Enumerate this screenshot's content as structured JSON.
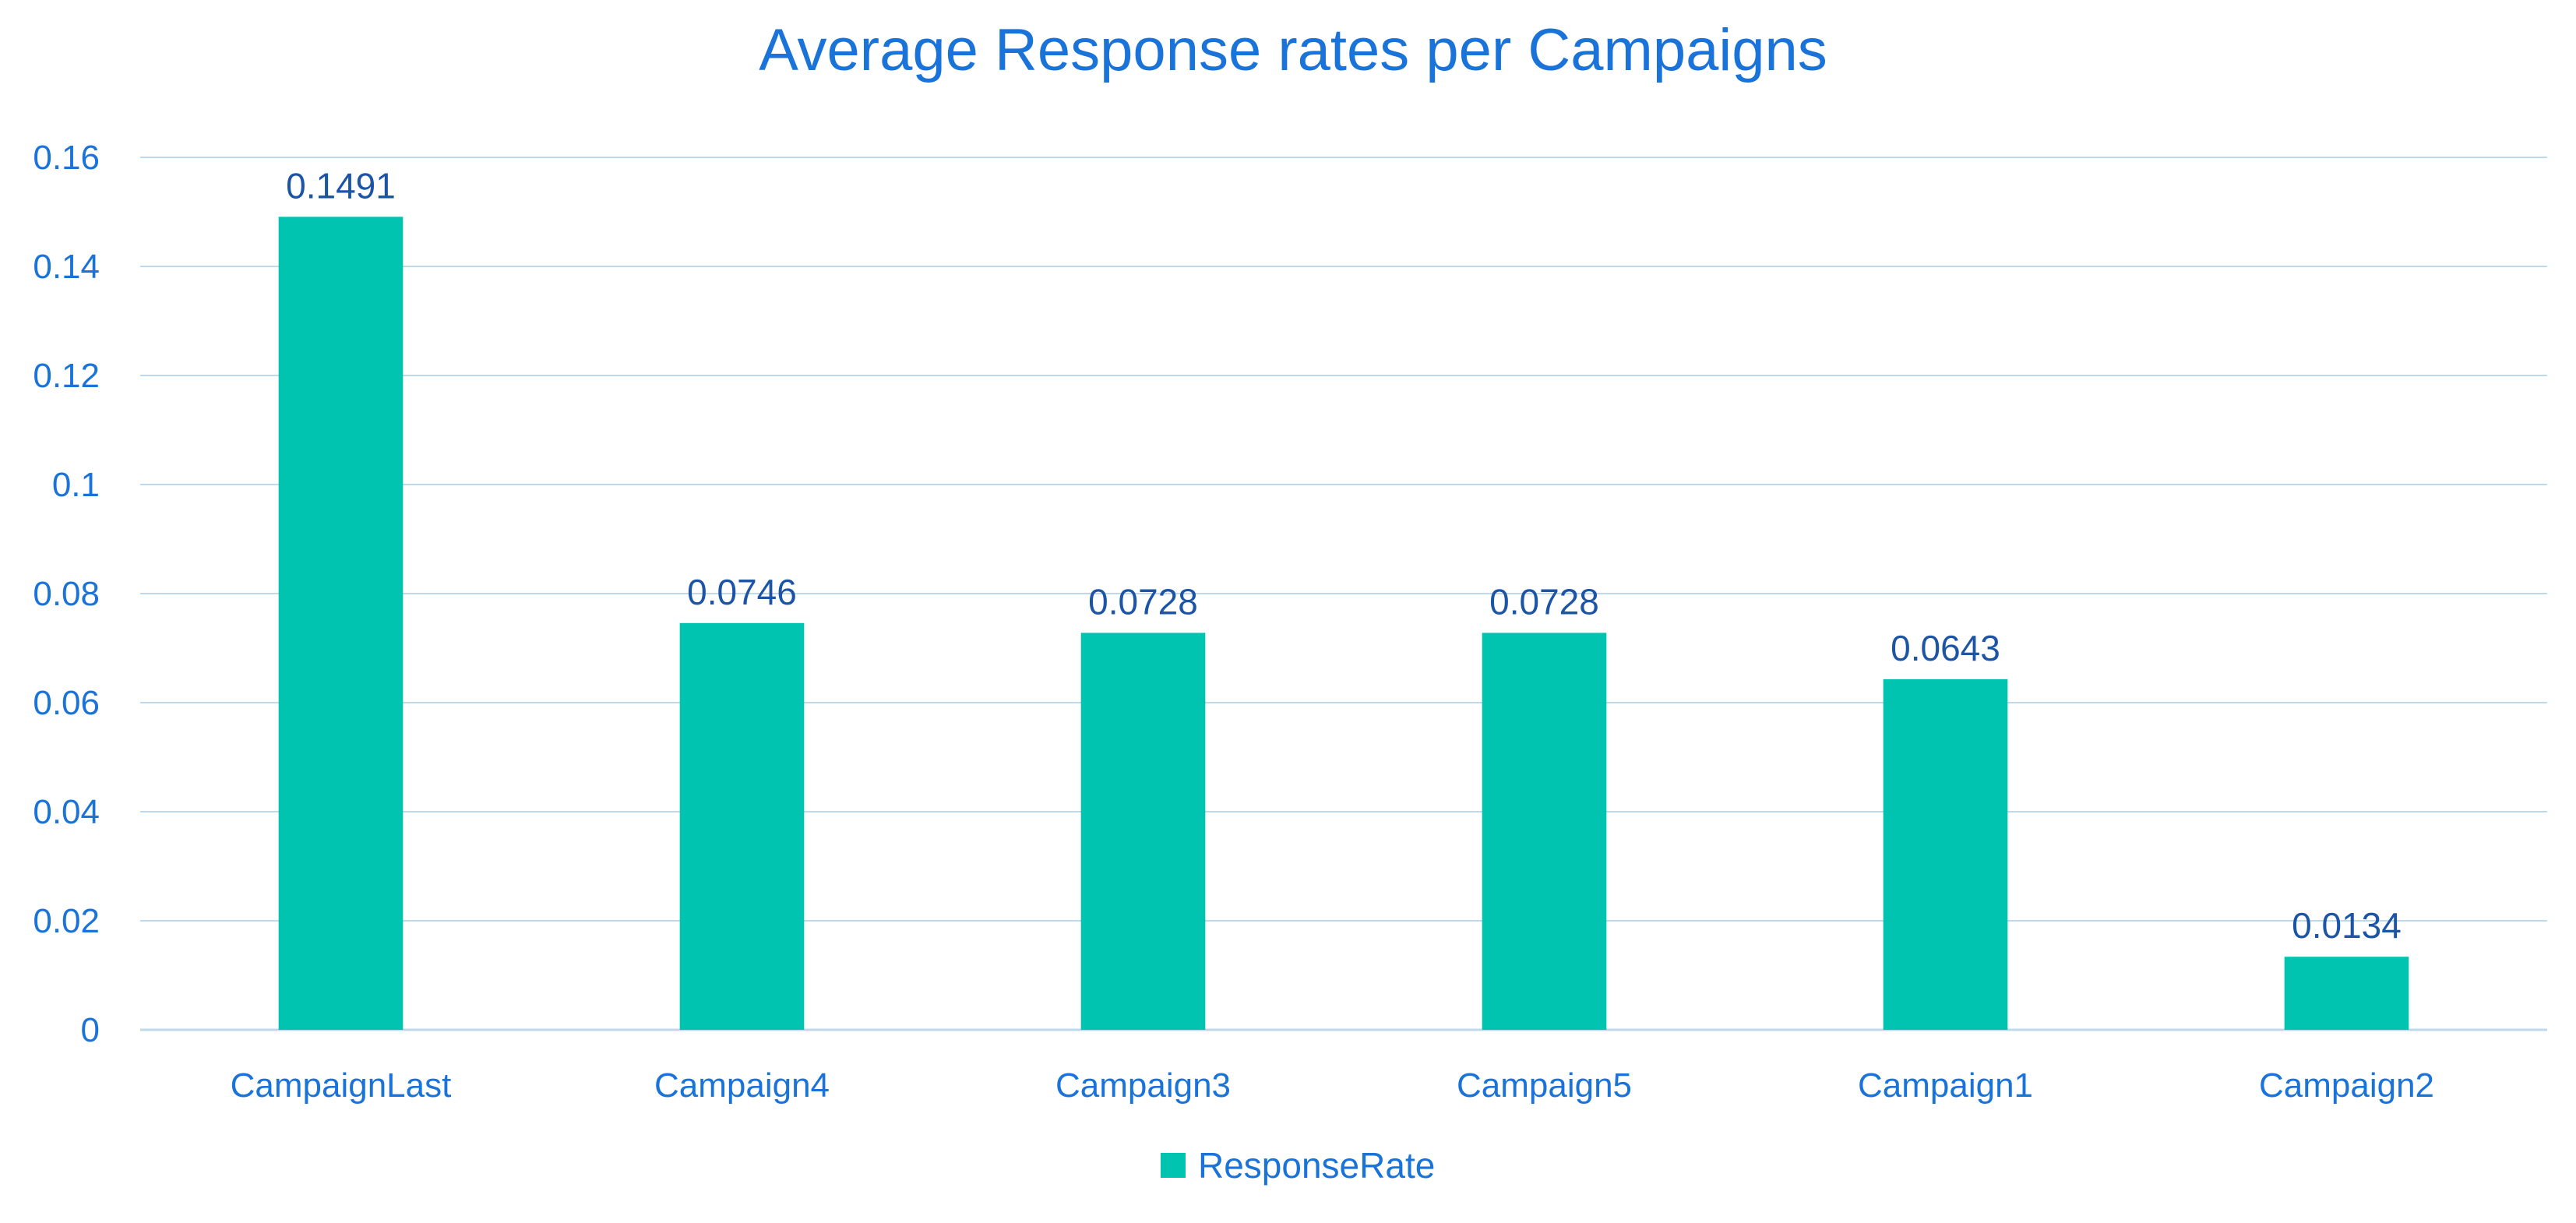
{
  "chart_data": {
    "type": "bar",
    "title": "Average Response rates per Campaigns",
    "categories": [
      "CampaignLast",
      "Campaign4",
      "Campaign3",
      "Campaign5",
      "Campaign1",
      "Campaign2"
    ],
    "series": [
      {
        "name": "ResponseRate",
        "values": [
          0.1491,
          0.0746,
          0.0728,
          0.0728,
          0.0643,
          0.0134
        ]
      }
    ],
    "data_labels": [
      "0.1491",
      "0.0746",
      "0.0728",
      "0.0728",
      "0.0643",
      "0.0134"
    ],
    "ylim": [
      0,
      0.16
    ],
    "yticks": [
      0,
      0.02,
      0.04,
      0.06,
      0.08,
      0.1,
      0.12,
      0.14,
      0.16
    ],
    "ytick_labels": [
      "0",
      "0.02",
      "0.04",
      "0.06",
      "0.08",
      "0.1",
      "0.12",
      "0.14",
      "0.16"
    ],
    "xlabel": "",
    "ylabel": "",
    "grid": true,
    "legend": "bottom-center",
    "colors": {
      "bar": "#00c3b0",
      "text": "#1a73d9",
      "data_label": "#1c55a6",
      "grid": "#bfd9ec"
    }
  }
}
